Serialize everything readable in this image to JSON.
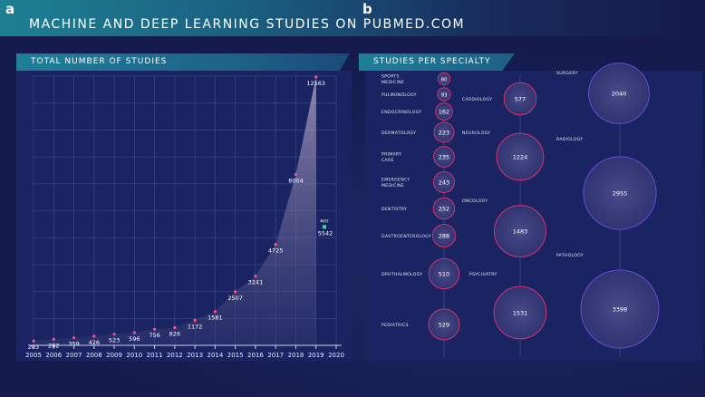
{
  "panel_a_label": "a",
  "panel_b_label": "b",
  "title": "MACHINE AND DEEP LEARNING STUDIES ON PUBMED.COM",
  "chart_data": [
    {
      "type": "area",
      "title": "TOTAL NUMBER OF STUDIES",
      "x": [
        "2005",
        "2006",
        "2007",
        "2008",
        "2009",
        "2010",
        "2011",
        "2012",
        "2013",
        "2014",
        "2015",
        "2016",
        "2017",
        "2018",
        "2019",
        "2020"
      ],
      "series": [
        {
          "values": [
            203,
            282,
            359,
            426,
            523,
            596,
            756,
            826,
            1172,
            1581,
            2507,
            3241,
            4725,
            8004,
            12563,
            null
          ]
        }
      ],
      "annotation": {
        "x": "2020",
        "label": "MAY",
        "value": 5542
      },
      "ylim": [
        0,
        12600
      ],
      "grid": true,
      "colors": {
        "marker": "#ff4f86",
        "may_marker": "#3ddc84",
        "area": "#b9a9c6"
      }
    },
    {
      "type": "bubble",
      "title": "STUDIES PER SPECIALTY",
      "categories": [
        "SPORTS MEDICINE",
        "PULMONOLOGY",
        "ENDOCRINOLOGY",
        "DERMATOLOGY",
        "PRIMARY CARE",
        "EMERGENCY MEDICINE",
        "DENTISTRY",
        "GASTROENTEROLOGY",
        "OPHTHALMOLOGY",
        "PEDIATRICS",
        "CARDIOLOGY",
        "NEUROLOGY",
        "ONCOLOGY",
        "PSYCHIATRY",
        "SURGERY",
        "RADIOLOGY",
        "PATHOLOGY"
      ],
      "values": [
        80,
        93,
        162,
        223,
        235,
        243,
        252,
        288,
        510,
        529,
        577,
        1224,
        1483,
        1531,
        2040,
        2955,
        3398
      ],
      "colors": {
        "bubble_border": "#d6336c",
        "bubble_fill": "#3c3f7e",
        "bubble_border_large": "#6a4ad6"
      }
    }
  ]
}
